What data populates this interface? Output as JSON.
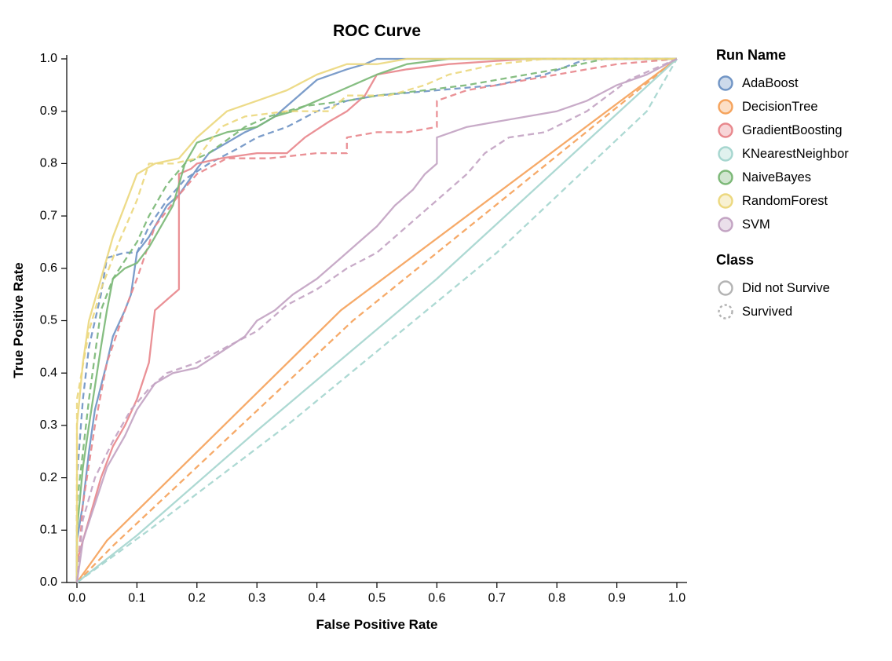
{
  "chart_data": {
    "type": "line",
    "title": "ROC Curve",
    "xlabel": "False Positive Rate",
    "ylabel": "True Positive Rate",
    "xlim": [
      0,
      1
    ],
    "ylim": [
      0,
      1
    ],
    "grid": false,
    "legend_position": "right",
    "x_ticks": [
      "0.0",
      "0.1",
      "0.2",
      "0.3",
      "0.4",
      "0.5",
      "0.6",
      "0.7",
      "0.8",
      "0.9",
      "1.0"
    ],
    "y_ticks": [
      "0.0",
      "0.1",
      "0.2",
      "0.3",
      "0.4",
      "0.5",
      "0.6",
      "0.7",
      "0.8",
      "0.9",
      "1.0"
    ],
    "legend": {
      "run_title": "Run Name",
      "runs": [
        {
          "label": "AdaBoost",
          "color": "#7195c5"
        },
        {
          "label": "DecisionTree",
          "color": "#f5a35c"
        },
        {
          "label": "GradientBoosting",
          "color": "#e8888d"
        },
        {
          "label": "KNearestNeighbor",
          "color": "#a6d6cf"
        },
        {
          "label": "NaiveBayes",
          "color": "#7cb877"
        },
        {
          "label": "RandomForest",
          "color": "#ecd87f"
        },
        {
          "label": "SVM",
          "color": "#c3a4c3"
        }
      ],
      "class_title": "Class",
      "classes": [
        {
          "label": "Did not Survive",
          "dash": false
        },
        {
          "label": "Survived",
          "dash": true
        }
      ]
    },
    "series": [
      {
        "run": "AdaBoost",
        "cls": "Did not Survive",
        "color": "#7195c5",
        "dash": false,
        "x": [
          0,
          0,
          0.01,
          0.02,
          0.03,
          0.05,
          0.06,
          0.08,
          0.09,
          0.1,
          0.12,
          0.13,
          0.15,
          0.17,
          0.2,
          0.22,
          0.25,
          0.28,
          0.3,
          0.33,
          0.35,
          0.37,
          0.4,
          0.45,
          0.48,
          0.5,
          1
        ],
        "y": [
          0,
          0.08,
          0.15,
          0.25,
          0.33,
          0.42,
          0.47,
          0.52,
          0.55,
          0.63,
          0.66,
          0.68,
          0.72,
          0.74,
          0.79,
          0.82,
          0.84,
          0.86,
          0.87,
          0.89,
          0.91,
          0.93,
          0.96,
          0.98,
          0.99,
          1,
          1
        ]
      },
      {
        "run": "AdaBoost",
        "cls": "Survived",
        "color": "#7195c5",
        "dash": true,
        "x": [
          0,
          0,
          0.01,
          0.02,
          0.04,
          0.05,
          0.08,
          0.1,
          0.12,
          0.15,
          0.18,
          0.22,
          0.27,
          0.3,
          0.35,
          0.4,
          0.45,
          0.5,
          0.6,
          0.7,
          0.78,
          0.85,
          1
        ],
        "y": [
          0,
          0.2,
          0.35,
          0.45,
          0.55,
          0.62,
          0.63,
          0.63,
          0.68,
          0.73,
          0.77,
          0.8,
          0.83,
          0.85,
          0.87,
          0.9,
          0.92,
          0.93,
          0.94,
          0.95,
          0.97,
          1,
          1
        ]
      },
      {
        "run": "DecisionTree",
        "cls": "Did not Survive",
        "color": "#f5a35c",
        "dash": false,
        "x": [
          0,
          0.05,
          0.44,
          1
        ],
        "y": [
          0,
          0.08,
          0.52,
          1
        ]
      },
      {
        "run": "DecisionTree",
        "cls": "Survived",
        "color": "#f5a35c",
        "dash": true,
        "x": [
          0,
          0.06,
          0.46,
          1
        ],
        "y": [
          0,
          0.07,
          0.5,
          1
        ]
      },
      {
        "run": "GradientBoosting",
        "cls": "Did not Survive",
        "color": "#e8888d",
        "dash": false,
        "x": [
          0,
          0,
          0.02,
          0.04,
          0.06,
          0.08,
          0.1,
          0.12,
          0.13,
          0.15,
          0.17,
          0.17,
          0.19,
          0.2,
          0.24,
          0.3,
          0.35,
          0.38,
          0.42,
          0.45,
          0.48,
          0.5,
          0.55,
          0.62,
          0.75,
          1
        ],
        "y": [
          0,
          0.04,
          0.12,
          0.2,
          0.26,
          0.3,
          0.35,
          0.42,
          0.52,
          0.54,
          0.56,
          0.78,
          0.79,
          0.8,
          0.81,
          0.82,
          0.82,
          0.85,
          0.88,
          0.9,
          0.93,
          0.97,
          0.98,
          0.99,
          1,
          1
        ]
      },
      {
        "run": "GradientBoosting",
        "cls": "Survived",
        "color": "#e8888d",
        "dash": true,
        "x": [
          0,
          0.01,
          0.03,
          0.05,
          0.08,
          0.1,
          0.13,
          0.17,
          0.2,
          0.25,
          0.32,
          0.4,
          0.45,
          0.45,
          0.5,
          0.55,
          0.6,
          0.6,
          0.65,
          0.7,
          0.75,
          0.8,
          0.9,
          1
        ],
        "y": [
          0,
          0.15,
          0.3,
          0.42,
          0.52,
          0.58,
          0.68,
          0.74,
          0.78,
          0.81,
          0.81,
          0.82,
          0.82,
          0.85,
          0.86,
          0.86,
          0.87,
          0.92,
          0.94,
          0.95,
          0.96,
          0.97,
          0.99,
          1
        ]
      },
      {
        "run": "KNearestNeighbor",
        "cls": "Did not Survive",
        "color": "#a6d6cf",
        "dash": false,
        "x": [
          0,
          0.1,
          0.3,
          0.6,
          1
        ],
        "y": [
          0,
          0.09,
          0.29,
          0.58,
          1
        ]
      },
      {
        "run": "KNearestNeighbor",
        "cls": "Survived",
        "color": "#a6d6cf",
        "dash": true,
        "x": [
          0,
          0.12,
          0.35,
          0.7,
          0.95,
          1
        ],
        "y": [
          0,
          0.1,
          0.3,
          0.63,
          0.9,
          1
        ]
      },
      {
        "run": "NaiveBayes",
        "cls": "Did not Survive",
        "color": "#7cb877",
        "dash": false,
        "x": [
          0,
          0,
          0.01,
          0.02,
          0.04,
          0.05,
          0.06,
          0.08,
          0.1,
          0.12,
          0.14,
          0.16,
          0.18,
          0.2,
          0.25,
          0.3,
          0.33,
          0.36,
          0.4,
          0.44,
          0.48,
          0.5,
          0.55,
          0.62,
          1
        ],
        "y": [
          0,
          0.1,
          0.22,
          0.3,
          0.45,
          0.52,
          0.58,
          0.6,
          0.61,
          0.64,
          0.68,
          0.72,
          0.8,
          0.84,
          0.86,
          0.87,
          0.89,
          0.9,
          0.92,
          0.94,
          0.96,
          0.97,
          0.99,
          1,
          1
        ]
      },
      {
        "run": "NaiveBayes",
        "cls": "Survived",
        "color": "#7cb877",
        "dash": true,
        "x": [
          0,
          0,
          0.02,
          0.04,
          0.06,
          0.1,
          0.12,
          0.15,
          0.18,
          0.22,
          0.28,
          0.32,
          0.38,
          0.45,
          0.5,
          0.58,
          0.65,
          0.7,
          0.8,
          0.88,
          1
        ],
        "y": [
          0,
          0.15,
          0.35,
          0.52,
          0.58,
          0.65,
          0.7,
          0.76,
          0.8,
          0.82,
          0.87,
          0.89,
          0.91,
          0.92,
          0.93,
          0.94,
          0.95,
          0.96,
          0.98,
          1,
          1
        ]
      },
      {
        "run": "RandomForest",
        "cls": "Did not Survive",
        "color": "#ecd87f",
        "dash": false,
        "x": [
          0,
          0,
          0.01,
          0.02,
          0.04,
          0.06,
          0.08,
          0.1,
          0.13,
          0.17,
          0.2,
          0.22,
          0.25,
          0.3,
          0.35,
          0.4,
          0.45,
          0.5,
          0.55,
          1
        ],
        "y": [
          0,
          0.3,
          0.42,
          0.5,
          0.58,
          0.66,
          0.72,
          0.78,
          0.8,
          0.81,
          0.85,
          0.87,
          0.9,
          0.92,
          0.94,
          0.97,
          0.99,
          0.99,
          1,
          1
        ]
      },
      {
        "run": "RandomForest",
        "cls": "Survived",
        "color": "#ecd87f",
        "dash": true,
        "x": [
          0,
          0,
          0.02,
          0.04,
          0.07,
          0.1,
          0.12,
          0.16,
          0.2,
          0.24,
          0.28,
          0.35,
          0.42,
          0.45,
          0.52,
          0.58,
          0.62,
          0.7,
          0.78,
          1
        ],
        "y": [
          0,
          0.35,
          0.48,
          0.56,
          0.65,
          0.73,
          0.8,
          0.8,
          0.81,
          0.87,
          0.89,
          0.9,
          0.9,
          0.93,
          0.93,
          0.95,
          0.97,
          0.99,
          1,
          1
        ]
      },
      {
        "run": "SVM",
        "cls": "Did not Survive",
        "color": "#c3a4c3",
        "dash": false,
        "x": [
          0,
          0.01,
          0.03,
          0.05,
          0.08,
          0.1,
          0.13,
          0.16,
          0.2,
          0.24,
          0.28,
          0.3,
          0.33,
          0.36,
          0.4,
          0.44,
          0.47,
          0.5,
          0.53,
          0.56,
          0.58,
          0.6,
          0.6,
          0.65,
          0.7,
          0.75,
          0.8,
          0.85,
          0.9,
          0.95,
          1
        ],
        "y": [
          0,
          0.08,
          0.15,
          0.22,
          0.28,
          0.33,
          0.38,
          0.4,
          0.41,
          0.44,
          0.47,
          0.5,
          0.52,
          0.55,
          0.58,
          0.62,
          0.65,
          0.68,
          0.72,
          0.75,
          0.78,
          0.8,
          0.85,
          0.87,
          0.88,
          0.89,
          0.9,
          0.92,
          0.95,
          0.97,
          1
        ]
      },
      {
        "run": "SVM",
        "cls": "Survived",
        "color": "#c3a4c3",
        "dash": true,
        "x": [
          0,
          0.01,
          0.03,
          0.06,
          0.09,
          0.12,
          0.15,
          0.2,
          0.25,
          0.3,
          0.35,
          0.4,
          0.45,
          0.5,
          0.55,
          0.6,
          0.65,
          0.68,
          0.72,
          0.78,
          0.85,
          0.92,
          1
        ],
        "y": [
          0,
          0.12,
          0.2,
          0.27,
          0.33,
          0.37,
          0.4,
          0.42,
          0.45,
          0.48,
          0.53,
          0.56,
          0.6,
          0.63,
          0.68,
          0.73,
          0.78,
          0.82,
          0.85,
          0.86,
          0.9,
          0.96,
          1
        ]
      }
    ]
  }
}
